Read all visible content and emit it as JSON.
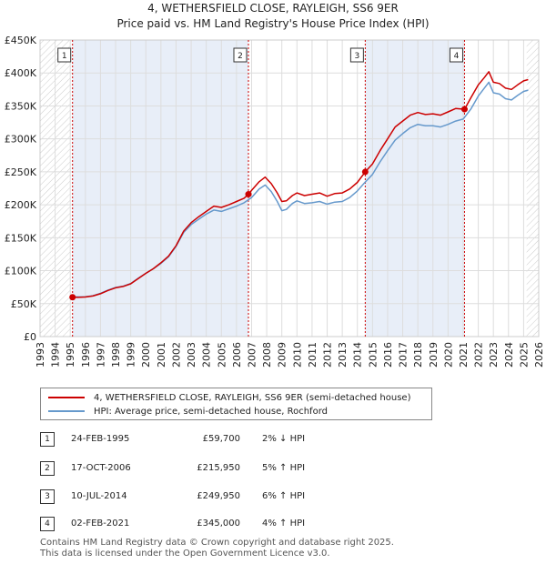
{
  "title_line1": "4, WETHERSFIELD CLOSE, RAYLEIGH, SS6 9ER",
  "title_line2": "Price paid vs. HM Land Registry's House Price Index (HPI)",
  "chart_data": {
    "type": "line",
    "xlim": [
      1993,
      2026
    ],
    "ylim": [
      0,
      450000
    ],
    "y_ticks": [
      0,
      50000,
      100000,
      150000,
      200000,
      250000,
      300000,
      350000,
      400000,
      450000
    ],
    "y_tick_labels": [
      "£0",
      "£50K",
      "£100K",
      "£150K",
      "£200K",
      "£250K",
      "£300K",
      "£350K",
      "£400K",
      "£450K"
    ],
    "x_ticks": [
      1993,
      1994,
      1995,
      1996,
      1997,
      1998,
      1999,
      2000,
      2001,
      2002,
      2003,
      2004,
      2005,
      2006,
      2007,
      2008,
      2009,
      2010,
      2011,
      2012,
      2013,
      2014,
      2015,
      2016,
      2017,
      2018,
      2019,
      2020,
      2021,
      2022,
      2023,
      2024,
      2025,
      2026
    ],
    "x_tick_labels": [
      "1993",
      "1994",
      "1995",
      "1996",
      "1997",
      "1998",
      "1999",
      "2000",
      "2001",
      "2002",
      "2003",
      "2004",
      "2005",
      "2006",
      "2007",
      "2008",
      "2009",
      "2010",
      "2011",
      "2012",
      "2013",
      "2014",
      "2015",
      "2016",
      "2017",
      "2018",
      "2019",
      "2020",
      "2021",
      "2022",
      "2023",
      "2024",
      "2025",
      "2026"
    ],
    "hatch_before": 1995.0,
    "hatch_after": 2025.2,
    "sale_shading": [
      [
        1995.15,
        2006.79
      ],
      [
        2014.52,
        2021.09
      ]
    ],
    "series": [
      {
        "name": "4, WETHERSFIELD CLOSE, RAYLEIGH, SS6 9ER (semi-detached house)",
        "color": "#cc0000",
        "x": [
          1995.15,
          1995.5,
          1996.0,
          1996.5,
          1997.0,
          1997.5,
          1998.0,
          1998.5,
          1999.0,
          1999.5,
          2000.0,
          2000.5,
          2001.0,
          2001.5,
          2002.0,
          2002.5,
          2003.0,
          2003.5,
          2004.0,
          2004.5,
          2005.0,
          2005.5,
          2006.0,
          2006.5,
          2006.79,
          2007.0,
          2007.5,
          2007.9,
          2008.3,
          2008.7,
          2009.0,
          2009.3,
          2009.7,
          2010.0,
          2010.5,
          2011.0,
          2011.5,
          2012.0,
          2012.5,
          2013.0,
          2013.5,
          2014.0,
          2014.52,
          2015.0,
          2015.5,
          2016.0,
          2016.5,
          2017.0,
          2017.5,
          2018.0,
          2018.5,
          2019.0,
          2019.5,
          2020.0,
          2020.5,
          2021.09,
          2021.5,
          2022.0,
          2022.4,
          2022.7,
          2023.0,
          2023.4,
          2023.8,
          2024.2,
          2024.6,
          2025.0,
          2025.3
        ],
        "values": [
          59700,
          59500,
          60000,
          61500,
          65000,
          70000,
          74000,
          76000,
          80000,
          88000,
          96000,
          103000,
          112000,
          122000,
          138000,
          160000,
          173000,
          182000,
          190000,
          198000,
          196000,
          200000,
          205000,
          210000,
          215950,
          222000,
          235000,
          242000,
          232000,
          218000,
          205000,
          206000,
          214000,
          218000,
          214000,
          216000,
          218000,
          213000,
          217000,
          218000,
          224000,
          234000,
          249950,
          262000,
          282000,
          300000,
          318000,
          327000,
          336000,
          340000,
          337000,
          338000,
          336000,
          341000,
          346000,
          345000,
          362000,
          382000,
          393000,
          402000,
          386000,
          384000,
          377000,
          375000,
          382000,
          388000,
          390000
        ]
      },
      {
        "name": "HPI: Average price, semi-detached house, Rochford",
        "color": "#6699cc",
        "x": [
          1995.0,
          1995.5,
          1996.0,
          1996.5,
          1997.0,
          1997.5,
          1998.0,
          1998.5,
          1999.0,
          1999.5,
          2000.0,
          2000.5,
          2001.0,
          2001.5,
          2002.0,
          2002.5,
          2003.0,
          2003.5,
          2004.0,
          2004.5,
          2005.0,
          2005.5,
          2006.0,
          2006.5,
          2007.0,
          2007.5,
          2007.9,
          2008.3,
          2008.7,
          2009.0,
          2009.3,
          2009.7,
          2010.0,
          2010.5,
          2011.0,
          2011.5,
          2012.0,
          2012.5,
          2013.0,
          2013.5,
          2014.0,
          2014.5,
          2015.0,
          2015.5,
          2016.0,
          2016.5,
          2017.0,
          2017.5,
          2018.0,
          2018.5,
          2019.0,
          2019.5,
          2020.0,
          2020.5,
          2021.0,
          2021.5,
          2022.0,
          2022.4,
          2022.7,
          2023.0,
          2023.4,
          2023.8,
          2024.2,
          2024.6,
          2025.0,
          2025.3
        ],
        "values": [
          60500,
          60200,
          60500,
          62000,
          65500,
          70500,
          74500,
          76500,
          80500,
          88500,
          96000,
          103000,
          111000,
          121000,
          137000,
          158000,
          170000,
          178000,
          186000,
          192000,
          190000,
          194000,
          198000,
          203000,
          211000,
          224000,
          230000,
          220000,
          205000,
          191000,
          193000,
          202000,
          206000,
          202000,
          203000,
          205000,
          201000,
          204000,
          205000,
          211000,
          221000,
          234000,
          246000,
          265000,
          282000,
          298000,
          308000,
          317000,
          322000,
          320000,
          320000,
          318000,
          322000,
          327000,
          330000,
          345000,
          365000,
          377000,
          386000,
          370000,
          368000,
          361000,
          359000,
          366000,
          372000,
          374000
        ]
      }
    ],
    "sales": [
      {
        "n": "1",
        "x": 1995.15,
        "price": 59700
      },
      {
        "n": "2",
        "x": 2006.79,
        "price": 215950
      },
      {
        "n": "3",
        "x": 2014.52,
        "price": 249950
      },
      {
        "n": "4",
        "x": 2021.09,
        "price": 345000
      }
    ]
  },
  "legend": {
    "red_label": "4, WETHERSFIELD CLOSE, RAYLEIGH, SS6 9ER (semi-detached house)",
    "blue_label": "HPI: Average price, semi-detached house, Rochford"
  },
  "sales_table": [
    {
      "num": "1",
      "date": "24-FEB-1995",
      "price": "£59,700",
      "hpi": "2% ↓ HPI"
    },
    {
      "num": "2",
      "date": "17-OCT-2006",
      "price": "£215,950",
      "hpi": "5% ↑ HPI"
    },
    {
      "num": "3",
      "date": "10-JUL-2014",
      "price": "£249,950",
      "hpi": "6% ↑ HPI"
    },
    {
      "num": "4",
      "date": "02-FEB-2021",
      "price": "£345,000",
      "hpi": "4% ↑ HPI"
    }
  ],
  "footer_line1": "Contains HM Land Registry data © Crown copyright and database right 2025.",
  "footer_line2": "This data is licensed under the Open Government Licence v3.0.",
  "colors": {
    "red": "#cc0000",
    "blue": "#6699cc",
    "grid": "#dddddd",
    "shade": "#e8eef8"
  }
}
